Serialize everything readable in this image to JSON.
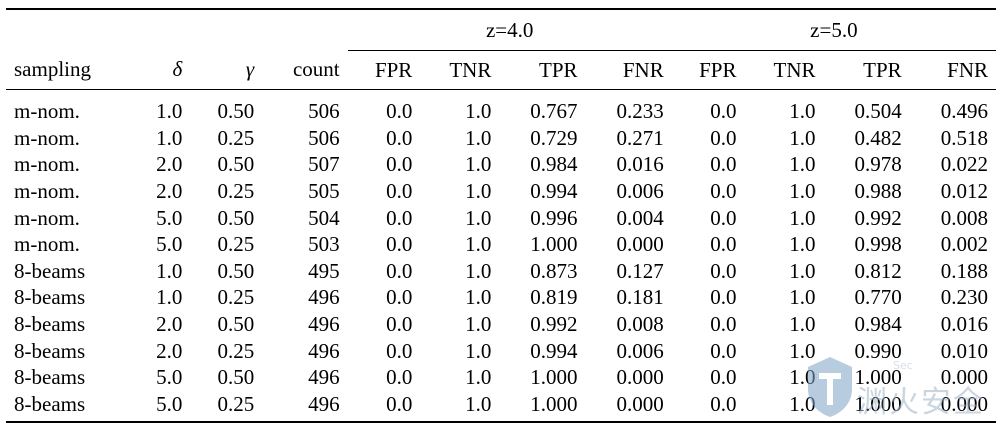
{
  "table": {
    "group_headers": {
      "z4": "z=4.0",
      "z5": "z=5.0"
    },
    "columns": [
      "sampling",
      "δ",
      "γ",
      "count",
      "FPR",
      "TNR",
      "TPR",
      "FNR",
      "FPR",
      "TNR",
      "TPR",
      "FNR"
    ],
    "rows": [
      [
        "m-nom.",
        "1.0",
        "0.50",
        "506",
        "0.0",
        "1.0",
        "0.767",
        "0.233",
        "0.0",
        "1.0",
        "0.504",
        "0.496"
      ],
      [
        "m-nom.",
        "1.0",
        "0.25",
        "506",
        "0.0",
        "1.0",
        "0.729",
        "0.271",
        "0.0",
        "1.0",
        "0.482",
        "0.518"
      ],
      [
        "m-nom.",
        "2.0",
        "0.50",
        "507",
        "0.0",
        "1.0",
        "0.984",
        "0.016",
        "0.0",
        "1.0",
        "0.978",
        "0.022"
      ],
      [
        "m-nom.",
        "2.0",
        "0.25",
        "505",
        "0.0",
        "1.0",
        "0.994",
        "0.006",
        "0.0",
        "1.0",
        "0.988",
        "0.012"
      ],
      [
        "m-nom.",
        "5.0",
        "0.50",
        "504",
        "0.0",
        "1.0",
        "0.996",
        "0.004",
        "0.0",
        "1.0",
        "0.992",
        "0.008"
      ],
      [
        "m-nom.",
        "5.0",
        "0.25",
        "503",
        "0.0",
        "1.0",
        "1.000",
        "0.000",
        "0.0",
        "1.0",
        "0.998",
        "0.002"
      ],
      [
        "8-beams",
        "1.0",
        "0.50",
        "495",
        "0.0",
        "1.0",
        "0.873",
        "0.127",
        "0.0",
        "1.0",
        "0.812",
        "0.188"
      ],
      [
        "8-beams",
        "1.0",
        "0.25",
        "496",
        "0.0",
        "1.0",
        "0.819",
        "0.181",
        "0.0",
        "1.0",
        "0.770",
        "0.230"
      ],
      [
        "8-beams",
        "2.0",
        "0.50",
        "496",
        "0.0",
        "1.0",
        "0.992",
        "0.008",
        "0.0",
        "1.0",
        "0.984",
        "0.016"
      ],
      [
        "8-beams",
        "2.0",
        "0.25",
        "496",
        "0.0",
        "1.0",
        "0.994",
        "0.006",
        "0.0",
        "1.0",
        "0.990",
        "0.010"
      ],
      [
        "8-beams",
        "5.0",
        "0.50",
        "496",
        "0.0",
        "1.0",
        "1.000",
        "0.000",
        "0.0",
        "1.0",
        "1.000",
        "0.000"
      ],
      [
        "8-beams",
        "5.0",
        "0.25",
        "496",
        "0.0",
        "1.0",
        "1.000",
        "0.000",
        "0.0",
        "1.0",
        "1.000",
        "0.000"
      ]
    ]
  },
  "watermark": {
    "text": "渊火安全",
    "small": "Sec"
  }
}
